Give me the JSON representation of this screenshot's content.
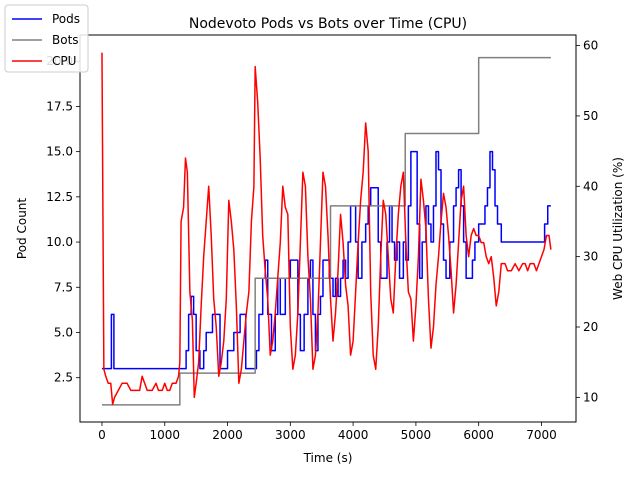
{
  "chart_data": {
    "type": "line",
    "title": "Nodevoto Pods vs Bots over Time (CPU)",
    "xlabel": "Time (s)",
    "ylabel_left": "Pod Count",
    "ylabel_right": "Web CPU Utilization (%)",
    "xlim": [
      -350,
      7550
    ],
    "ylim_left": [
      0.05,
      21.45
    ],
    "ylim_right": [
      6.5,
      61.5
    ],
    "x_ticks": [
      0,
      1000,
      2000,
      3000,
      4000,
      5000,
      6000,
      7000
    ],
    "x_tick_labels": [
      "0",
      "1000",
      "2000",
      "3000",
      "4000",
      "5000",
      "6000",
      "7000"
    ],
    "y_left_ticks": [
      2.5,
      5.0,
      7.5,
      10.0,
      12.5,
      15.0,
      17.5,
      20.0
    ],
    "y_left_tick_labels": [
      "2.5",
      "5.0",
      "7.5",
      "10.0",
      "12.5",
      "15.0",
      "17.5",
      "20.0"
    ],
    "y_right_ticks": [
      10,
      20,
      30,
      40,
      50,
      60
    ],
    "y_right_tick_labels": [
      "10",
      "20",
      "30",
      "40",
      "50",
      "60"
    ],
    "grid": false,
    "legend_position": "top-left",
    "series": [
      {
        "name": "Pods",
        "axis": "left",
        "color": "#0000ff",
        "step": true,
        "points": [
          [
            0,
            3
          ],
          [
            120,
            3
          ],
          [
            150,
            6
          ],
          [
            180,
            6
          ],
          [
            190,
            3
          ],
          [
            1250,
            3
          ],
          [
            1300,
            3
          ],
          [
            1340,
            4
          ],
          [
            1380,
            6
          ],
          [
            1420,
            7
          ],
          [
            1460,
            6
          ],
          [
            1500,
            4
          ],
          [
            1560,
            3
          ],
          [
            1620,
            4
          ],
          [
            1660,
            5
          ],
          [
            1720,
            5
          ],
          [
            1760,
            6
          ],
          [
            1840,
            6
          ],
          [
            1880,
            3
          ],
          [
            1950,
            3
          ],
          [
            2000,
            4
          ],
          [
            2060,
            4
          ],
          [
            2100,
            5
          ],
          [
            2160,
            5
          ],
          [
            2200,
            6
          ],
          [
            2260,
            6
          ],
          [
            2290,
            3
          ],
          [
            2400,
            3
          ],
          [
            2460,
            4
          ],
          [
            2500,
            6
          ],
          [
            2560,
            8
          ],
          [
            2600,
            9
          ],
          [
            2640,
            6
          ],
          [
            2700,
            4
          ],
          [
            2760,
            6
          ],
          [
            2800,
            8
          ],
          [
            2840,
            6
          ],
          [
            2880,
            6
          ],
          [
            2920,
            8
          ],
          [
            2960,
            8
          ],
          [
            3000,
            9
          ],
          [
            3080,
            9
          ],
          [
            3120,
            6
          ],
          [
            3160,
            4
          ],
          [
            3220,
            6
          ],
          [
            3280,
            8
          ],
          [
            3320,
            9
          ],
          [
            3360,
            6
          ],
          [
            3400,
            4
          ],
          [
            3440,
            6
          ],
          [
            3480,
            7
          ],
          [
            3520,
            9
          ],
          [
            3580,
            9
          ],
          [
            3620,
            8
          ],
          [
            3680,
            7
          ],
          [
            3720,
            8
          ],
          [
            3760,
            7
          ],
          [
            3800,
            8
          ],
          [
            3840,
            9
          ],
          [
            3880,
            8
          ],
          [
            3920,
            10
          ],
          [
            3960,
            12
          ],
          [
            4000,
            12
          ],
          [
            4040,
            10
          ],
          [
            4080,
            8
          ],
          [
            4140,
            10
          ],
          [
            4200,
            11
          ],
          [
            4240,
            12
          ],
          [
            4280,
            13
          ],
          [
            4360,
            13
          ],
          [
            4400,
            10
          ],
          [
            4440,
            8
          ],
          [
            4500,
            8
          ],
          [
            4540,
            10
          ],
          [
            4580,
            12
          ],
          [
            4620,
            10
          ],
          [
            4660,
            9
          ],
          [
            4700,
            10
          ],
          [
            4740,
            8
          ],
          [
            4780,
            8
          ],
          [
            4800,
            10
          ],
          [
            4840,
            9
          ],
          [
            4880,
            12
          ],
          [
            4920,
            15
          ],
          [
            4980,
            15
          ],
          [
            5020,
            11
          ],
          [
            5060,
            8
          ],
          [
            5100,
            10
          ],
          [
            5160,
            12
          ],
          [
            5200,
            11
          ],
          [
            5240,
            10
          ],
          [
            5280,
            12
          ],
          [
            5320,
            15
          ],
          [
            5360,
            14
          ],
          [
            5400,
            11
          ],
          [
            5440,
            9
          ],
          [
            5480,
            8
          ],
          [
            5540,
            10
          ],
          [
            5600,
            12
          ],
          [
            5640,
            13
          ],
          [
            5680,
            14
          ],
          [
            5720,
            12
          ],
          [
            5760,
            10
          ],
          [
            5800,
            8
          ],
          [
            5860,
            8
          ],
          [
            5900,
            9
          ],
          [
            5940,
            10
          ],
          [
            6000,
            11
          ],
          [
            6060,
            11
          ],
          [
            6100,
            12
          ],
          [
            6140,
            13
          ],
          [
            6180,
            15
          ],
          [
            6220,
            14
          ],
          [
            6260,
            12
          ],
          [
            6300,
            11
          ],
          [
            6360,
            10
          ],
          [
            7000,
            10
          ],
          [
            7050,
            11
          ],
          [
            7100,
            12
          ],
          [
            7150,
            12
          ]
        ]
      },
      {
        "name": "Bots",
        "axis": "left",
        "color": "#808080",
        "step": true,
        "points": [
          [
            0,
            1
          ],
          [
            1240,
            1
          ],
          [
            1240,
            2.75
          ],
          [
            2440,
            2.75
          ],
          [
            2440,
            8
          ],
          [
            3640,
            8
          ],
          [
            3640,
            12
          ],
          [
            4830,
            12
          ],
          [
            4830,
            16
          ],
          [
            6000,
            16
          ],
          [
            6000,
            20.2
          ],
          [
            7150,
            20.2
          ]
        ]
      },
      {
        "name": "CPU",
        "axis": "right",
        "color": "#ff0000",
        "step": false,
        "points": [
          [
            0,
            59
          ],
          [
            30,
            14
          ],
          [
            60,
            13
          ],
          [
            100,
            12
          ],
          [
            140,
            12
          ],
          [
            170,
            9
          ],
          [
            200,
            10
          ],
          [
            260,
            11
          ],
          [
            320,
            12
          ],
          [
            400,
            12
          ],
          [
            460,
            11
          ],
          [
            540,
            11
          ],
          [
            600,
            11
          ],
          [
            640,
            13
          ],
          [
            680,
            12
          ],
          [
            720,
            11
          ],
          [
            800,
            11
          ],
          [
            860,
            12
          ],
          [
            900,
            11
          ],
          [
            960,
            11
          ],
          [
            1000,
            12
          ],
          [
            1040,
            11
          ],
          [
            1080,
            11
          ],
          [
            1120,
            12
          ],
          [
            1180,
            12
          ],
          [
            1220,
            13
          ],
          [
            1240,
            15
          ],
          [
            1260,
            35
          ],
          [
            1300,
            37
          ],
          [
            1330,
            44
          ],
          [
            1360,
            42
          ],
          [
            1400,
            25
          ],
          [
            1440,
            21
          ],
          [
            1470,
            10
          ],
          [
            1500,
            12
          ],
          [
            1540,
            15
          ],
          [
            1580,
            23
          ],
          [
            1620,
            30
          ],
          [
            1660,
            35
          ],
          [
            1700,
            40
          ],
          [
            1740,
            33
          ],
          [
            1780,
            24
          ],
          [
            1820,
            20
          ],
          [
            1860,
            13
          ],
          [
            1900,
            15
          ],
          [
            1940,
            18
          ],
          [
            1980,
            24
          ],
          [
            2020,
            38
          ],
          [
            2060,
            35
          ],
          [
            2100,
            31
          ],
          [
            2140,
            23
          ],
          [
            2180,
            12
          ],
          [
            2220,
            14
          ],
          [
            2260,
            18
          ],
          [
            2300,
            22
          ],
          [
            2340,
            25
          ],
          [
            2380,
            35
          ],
          [
            2420,
            40
          ],
          [
            2440,
            57
          ],
          [
            2480,
            52
          ],
          [
            2520,
            44
          ],
          [
            2560,
            33
          ],
          [
            2600,
            28
          ],
          [
            2640,
            24
          ],
          [
            2680,
            16
          ],
          [
            2720,
            18
          ],
          [
            2760,
            22
          ],
          [
            2800,
            27
          ],
          [
            2840,
            32
          ],
          [
            2880,
            40
          ],
          [
            2920,
            37
          ],
          [
            2960,
            36
          ],
          [
            3000,
            20
          ],
          [
            3040,
            14
          ],
          [
            3080,
            16
          ],
          [
            3120,
            22
          ],
          [
            3160,
            32
          ],
          [
            3200,
            42
          ],
          [
            3240,
            40
          ],
          [
            3280,
            30
          ],
          [
            3320,
            24
          ],
          [
            3360,
            14
          ],
          [
            3400,
            16
          ],
          [
            3440,
            22
          ],
          [
            3480,
            32
          ],
          [
            3520,
            42
          ],
          [
            3560,
            40
          ],
          [
            3600,
            33
          ],
          [
            3640,
            24
          ],
          [
            3680,
            18
          ],
          [
            3720,
            22
          ],
          [
            3760,
            28
          ],
          [
            3800,
            36
          ],
          [
            3840,
            32
          ],
          [
            3880,
            26
          ],
          [
            3920,
            23
          ],
          [
            3960,
            16
          ],
          [
            4000,
            18
          ],
          [
            4040,
            25
          ],
          [
            4080,
            32
          ],
          [
            4120,
            38
          ],
          [
            4160,
            42
          ],
          [
            4200,
            49
          ],
          [
            4240,
            45
          ],
          [
            4280,
            25
          ],
          [
            4320,
            16
          ],
          [
            4360,
            14
          ],
          [
            4400,
            20
          ],
          [
            4440,
            30
          ],
          [
            4480,
            38
          ],
          [
            4520,
            36
          ],
          [
            4560,
            30
          ],
          [
            4600,
            24
          ],
          [
            4640,
            22
          ],
          [
            4680,
            30
          ],
          [
            4720,
            36
          ],
          [
            4760,
            40
          ],
          [
            4800,
            42
          ],
          [
            4840,
            32
          ],
          [
            4880,
            25
          ],
          [
            4920,
            24
          ],
          [
            4960,
            18
          ],
          [
            5000,
            23
          ],
          [
            5040,
            30
          ],
          [
            5080,
            41
          ],
          [
            5120,
            38
          ],
          [
            5160,
            34
          ],
          [
            5200,
            24
          ],
          [
            5240,
            17
          ],
          [
            5280,
            20
          ],
          [
            5320,
            26
          ],
          [
            5360,
            30
          ],
          [
            5400,
            35
          ],
          [
            5440,
            39
          ],
          [
            5480,
            37
          ],
          [
            5520,
            33
          ],
          [
            5560,
            28
          ],
          [
            5600,
            22
          ],
          [
            5640,
            26
          ],
          [
            5680,
            32
          ],
          [
            5720,
            38
          ],
          [
            5760,
            40
          ],
          [
            5800,
            33
          ],
          [
            5840,
            30
          ],
          [
            5880,
            33
          ],
          [
            5920,
            34
          ],
          [
            5960,
            33
          ],
          [
            6000,
            33
          ],
          [
            6040,
            32
          ],
          [
            6080,
            32
          ],
          [
            6120,
            30
          ],
          [
            6160,
            29
          ],
          [
            6200,
            30
          ],
          [
            6240,
            27
          ],
          [
            6280,
            23
          ],
          [
            6320,
            25
          ],
          [
            6360,
            29
          ],
          [
            6420,
            29
          ],
          [
            6460,
            28
          ],
          [
            6520,
            28
          ],
          [
            6580,
            29
          ],
          [
            6640,
            28
          ],
          [
            6700,
            29
          ],
          [
            6740,
            29
          ],
          [
            6780,
            28
          ],
          [
            6820,
            29
          ],
          [
            6880,
            29
          ],
          [
            6920,
            28
          ],
          [
            6960,
            29
          ],
          [
            7000,
            30
          ],
          [
            7040,
            31
          ],
          [
            7080,
            33
          ],
          [
            7120,
            33
          ],
          [
            7150,
            31
          ]
        ]
      }
    ]
  }
}
